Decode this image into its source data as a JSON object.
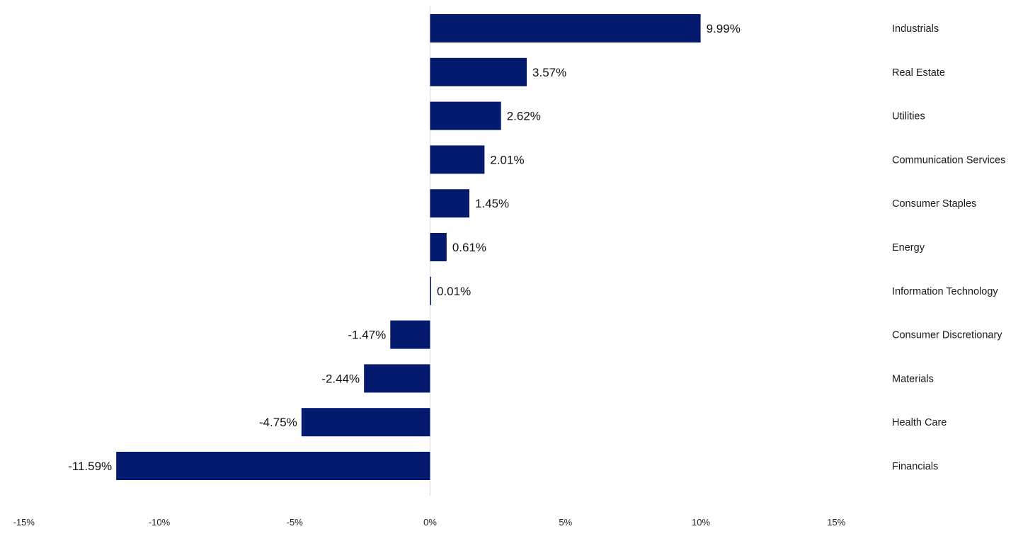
{
  "chart_data": {
    "type": "bar",
    "orientation": "horizontal",
    "categories": [
      "Industrials",
      "Real Estate",
      "Utilities",
      "Communication Services",
      "Consumer Staples",
      "Energy",
      "Information Technology",
      "Consumer Discretionary",
      "Materials",
      "Health Care",
      "Financials"
    ],
    "values": [
      9.99,
      3.57,
      2.62,
      2.01,
      1.45,
      0.61,
      0.01,
      -1.47,
      -2.44,
      -4.75,
      -11.59
    ],
    "value_labels": [
      "9.99%",
      "3.57%",
      "2.62%",
      "2.01%",
      "1.45%",
      "0.61%",
      "0.01%",
      "-1.47%",
      "-2.44%",
      "-4.75%",
      "-11.59%"
    ],
    "xlim": [
      -15,
      15
    ],
    "x_ticks": [
      -15,
      -10,
      -5,
      0,
      5,
      10,
      15
    ],
    "x_tick_labels": [
      "-15%",
      "-10%",
      "-5%",
      "0%",
      "5%",
      "10%",
      "15%"
    ],
    "category_labels_position": "right",
    "grid": false,
    "bar_color": "#031A6E",
    "axis_line_color": "#D9D9D9"
  }
}
